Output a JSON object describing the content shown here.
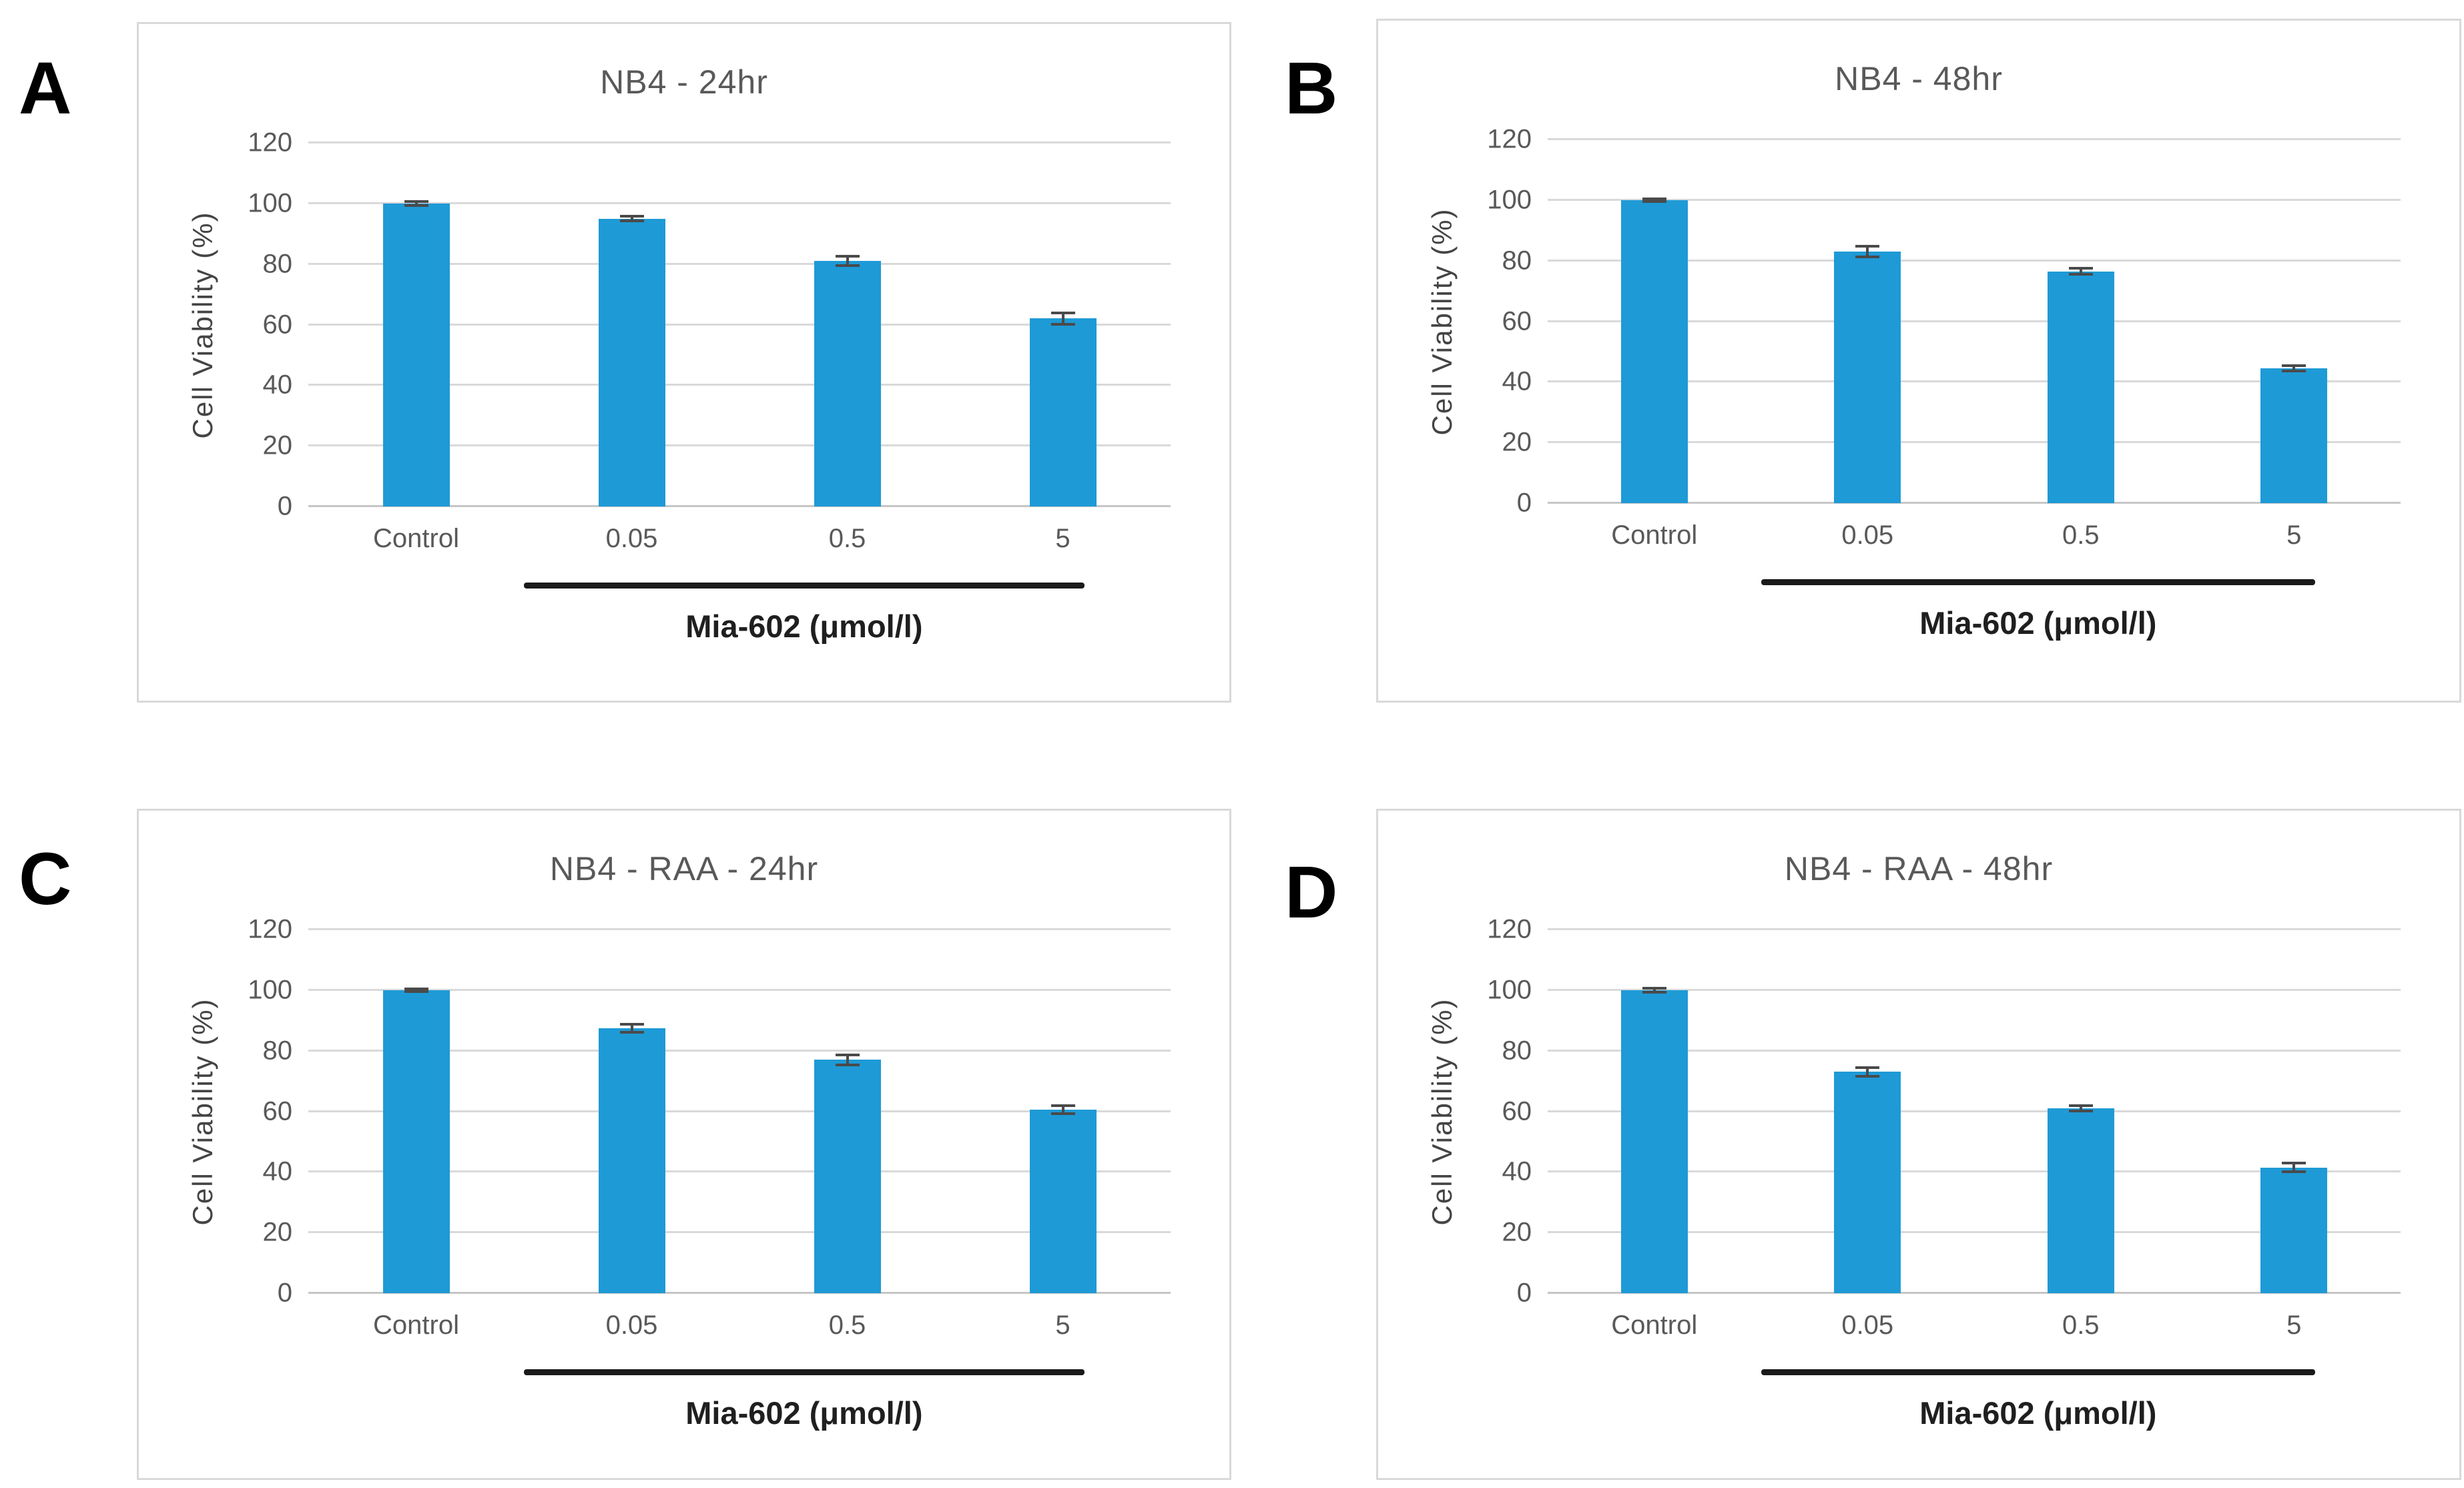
{
  "figure": {
    "panels": [
      {
        "letter": "A"
      },
      {
        "letter": "B"
      },
      {
        "letter": "C"
      },
      {
        "letter": "D"
      }
    ],
    "colors": {
      "bar": "#1e9ad6",
      "gridline": "#d9d9d9",
      "axis_text": "#595959",
      "error_bar": "#4a4a4a",
      "treatment_line": "#1a1a1a"
    }
  },
  "chart_data": [
    {
      "type": "bar",
      "title": "NB4 - 24hr",
      "categories": [
        "Control",
        "0.05",
        "0.5",
        "5"
      ],
      "values": [
        100,
        95,
        81,
        62
      ],
      "errors": [
        0.6,
        0.8,
        1.5,
        1.8
      ],
      "ylabel": "Cell Viability (%)",
      "xlabel": "Mia-602 (μmol/l)",
      "ylim": [
        0,
        120
      ],
      "yticks": [
        0,
        20,
        40,
        60,
        80,
        100,
        120
      ],
      "grid": true,
      "legend": false
    },
    {
      "type": "bar",
      "title": "NB4 - 48hr",
      "categories": [
        "Control",
        "0.05",
        "0.5",
        "5"
      ],
      "values": [
        100,
        83,
        76.5,
        44.5
      ],
      "errors": [
        0.5,
        1.8,
        1.0,
        0.8
      ],
      "ylabel": "Cell Viability (%)",
      "xlabel": "Mia-602 (μmol/l)",
      "ylim": [
        0,
        120
      ],
      "yticks": [
        0,
        20,
        40,
        60,
        80,
        100,
        120
      ],
      "grid": true,
      "legend": false
    },
    {
      "type": "bar",
      "title": "NB4 -  RAA - 24hr",
      "categories": [
        "Control",
        "0.05",
        "0.5",
        "5"
      ],
      "values": [
        100,
        87.5,
        77,
        60.5
      ],
      "errors": [
        0.5,
        1.3,
        1.6,
        1.3
      ],
      "ylabel": "Cell Viability (%)",
      "xlabel": "Mia-602 (μmol/l)",
      "ylim": [
        0,
        120
      ],
      "yticks": [
        0,
        20,
        40,
        60,
        80,
        100,
        120
      ],
      "grid": true,
      "legend": false
    },
    {
      "type": "bar",
      "title": "NB4 - RAA - 48hr",
      "categories": [
        "Control",
        "0.05",
        "0.5",
        "5"
      ],
      "values": [
        100,
        73,
        61,
        41.5
      ],
      "errors": [
        0.7,
        1.4,
        0.8,
        1.4
      ],
      "ylabel": "Cell Viability (%)",
      "xlabel": "Mia-602 (μmol/l)",
      "ylim": [
        0,
        120
      ],
      "yticks": [
        0,
        20,
        40,
        60,
        80,
        100,
        120
      ],
      "grid": true,
      "legend": false
    }
  ]
}
